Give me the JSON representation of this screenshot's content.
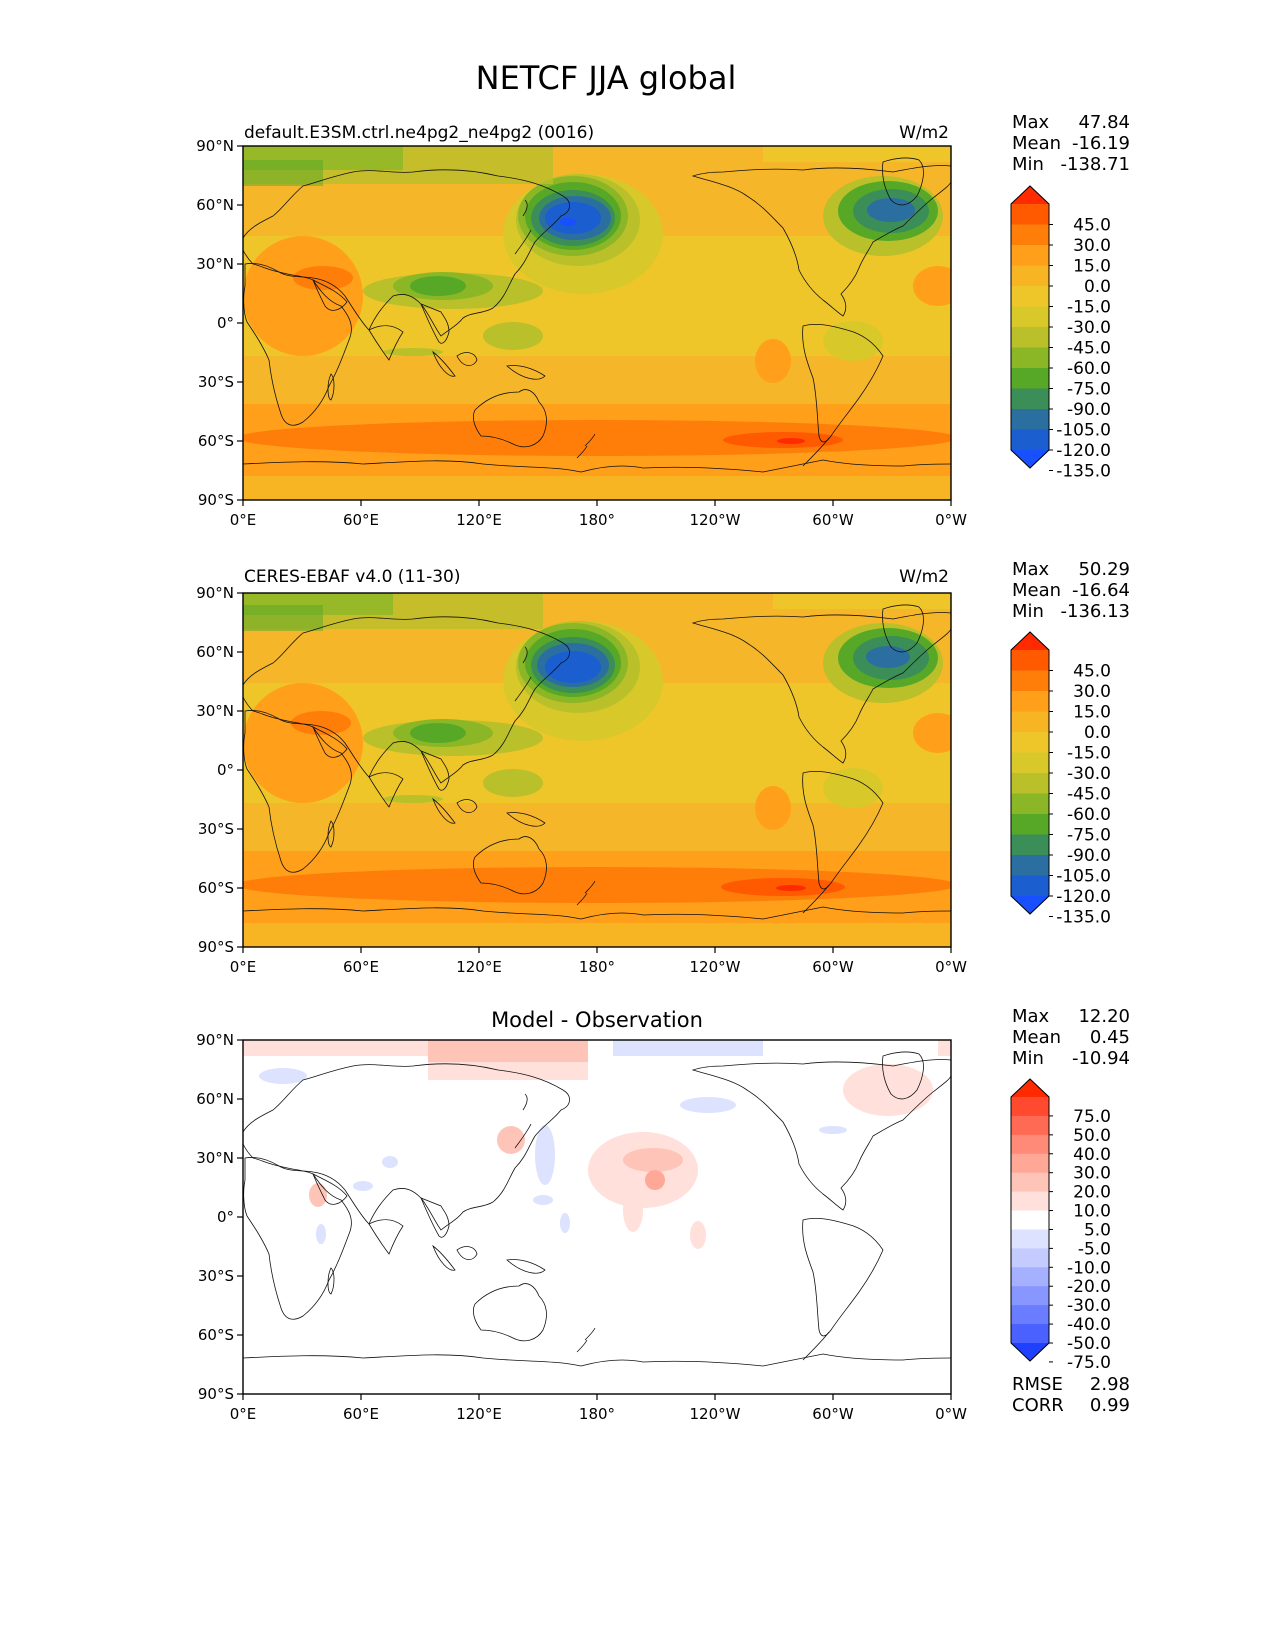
{
  "figure": {
    "title": "NETCF JJA global"
  },
  "panels": [
    {
      "id": "test",
      "left_title": "default.E3SM.ctrl.ne4pg2_ne4pg2 (0016)",
      "center_title": "",
      "units": "W/m2",
      "stats": [
        {
          "label": "Max",
          "value": "47.84"
        },
        {
          "label": "Mean",
          "value": "-16.19"
        },
        {
          "label": "Min",
          "value": "-138.71"
        }
      ],
      "colorbar": {
        "labels": [
          "45.0",
          "30.0",
          "15.0",
          "0.0",
          "-15.0",
          "-30.0",
          "-45.0",
          "-60.0",
          "-75.0",
          "-90.0",
          "-105.0",
          "-120.0",
          "-135.0"
        ],
        "colors": [
          "#ff2a00",
          "#ff5a00",
          "#ff7e0a",
          "#ff9f1a",
          "#f7b524",
          "#efc62a",
          "#d8c82a",
          "#b9c02a",
          "#8bb727",
          "#58a828",
          "#3b8e57",
          "#2a6fa0",
          "#1a5ed0",
          "#1850ff"
        ]
      }
    },
    {
      "id": "reference",
      "left_title": "CERES-EBAF v4.0 (11-30)",
      "center_title": "",
      "units": "W/m2",
      "stats": [
        {
          "label": "Max",
          "value": "50.29"
        },
        {
          "label": "Mean",
          "value": "-16.64"
        },
        {
          "label": "Min",
          "value": "-136.13"
        }
      ],
      "colorbar": {
        "labels": [
          "45.0",
          "30.0",
          "15.0",
          "0.0",
          "-15.0",
          "-30.0",
          "-45.0",
          "-60.0",
          "-75.0",
          "-90.0",
          "-105.0",
          "-120.0",
          "-135.0"
        ],
        "colors": [
          "#ff2a00",
          "#ff5a00",
          "#ff7e0a",
          "#ff9f1a",
          "#f7b524",
          "#efc62a",
          "#d8c82a",
          "#b9c02a",
          "#8bb727",
          "#58a828",
          "#3b8e57",
          "#2a6fa0",
          "#1a5ed0",
          "#1850ff"
        ]
      }
    },
    {
      "id": "difference",
      "left_title": "",
      "center_title": "Model - Observation",
      "units": "",
      "stats": [
        {
          "label": "Max",
          "value": "12.20"
        },
        {
          "label": "Mean",
          "value": "0.45"
        },
        {
          "label": "Min",
          "value": "-10.94"
        }
      ],
      "extra_stats": [
        {
          "label": "RMSE",
          "value": "2.98"
        },
        {
          "label": "CORR",
          "value": "0.99"
        }
      ],
      "colorbar": {
        "labels": [
          "75.0",
          "50.0",
          "40.0",
          "30.0",
          "20.0",
          "10.0",
          "5.0",
          "-5.0",
          "-10.0",
          "-20.0",
          "-30.0",
          "-40.0",
          "-50.0",
          "-75.0"
        ],
        "colors": [
          "#ff2a00",
          "#ff4a30",
          "#ff6a55",
          "#ff8a78",
          "#ffa898",
          "#ffc4b8",
          "#ffe0da",
          "#ffffff",
          "#dde2ff",
          "#c4ccff",
          "#a5b0ff",
          "#8896ff",
          "#6a7cff",
          "#4a60ff",
          "#2040ff"
        ]
      }
    }
  ],
  "chart_data": [
    {
      "type": "heatmap",
      "title": "default.E3SM.ctrl.ne4pg2_ne4pg2 (0016)",
      "units": "W/m2",
      "x_tick_labels": [
        "0°E",
        "60°E",
        "120°E",
        "180°",
        "120°W",
        "60°W",
        "0°W"
      ],
      "y_tick_labels": [
        "90°N",
        "60°N",
        "30°N",
        "0°",
        "30°S",
        "60°S",
        "90°S"
      ],
      "xlim": [
        0,
        360
      ],
      "ylim": [
        -90,
        90
      ],
      "levels": [
        -135,
        -120,
        -105,
        -90,
        -75,
        -60,
        -45,
        -30,
        -15,
        0,
        15,
        30,
        45
      ],
      "stats": {
        "max": 47.84,
        "mean": -16.19,
        "min": -138.71
      },
      "features": [
        {
          "lon": 165,
          "lat": 52,
          "value": -130
        },
        {
          "lon": 320,
          "lat": 57,
          "value": -105
        },
        {
          "lon": 115,
          "lat": 20,
          "value": -75
        },
        {
          "lon": 275,
          "lat": -57,
          "value": 40
        }
      ]
    },
    {
      "type": "heatmap",
      "title": "CERES-EBAF v4.0 (11-30)",
      "units": "W/m2",
      "x_tick_labels": [
        "0°E",
        "60°E",
        "120°E",
        "180°",
        "120°W",
        "60°W",
        "0°W"
      ],
      "y_tick_labels": [
        "90°N",
        "60°N",
        "30°N",
        "0°",
        "30°S",
        "60°S",
        "90°S"
      ],
      "xlim": [
        0,
        360
      ],
      "ylim": [
        -90,
        90
      ],
      "levels": [
        -135,
        -120,
        -105,
        -90,
        -75,
        -60,
        -45,
        -30,
        -15,
        0,
        15,
        30,
        45
      ],
      "stats": {
        "max": 50.29,
        "mean": -16.64,
        "min": -136.13
      },
      "features": [
        {
          "lon": 165,
          "lat": 52,
          "value": -128
        },
        {
          "lon": 322,
          "lat": 57,
          "value": -105
        },
        {
          "lon": 113,
          "lat": 20,
          "value": -75
        },
        {
          "lon": 278,
          "lat": -57,
          "value": 42
        }
      ]
    },
    {
      "type": "heatmap",
      "title": "Model - Observation",
      "x_tick_labels": [
        "0°E",
        "60°E",
        "120°E",
        "180°",
        "120°W",
        "60°W",
        "0°W"
      ],
      "y_tick_labels": [
        "90°N",
        "60°N",
        "30°N",
        "0°",
        "30°S",
        "60°S",
        "90°S"
      ],
      "xlim": [
        0,
        360
      ],
      "ylim": [
        -90,
        90
      ],
      "levels": [
        -75,
        -50,
        -40,
        -30,
        -20,
        -10,
        -5,
        5,
        10,
        20,
        30,
        40,
        50,
        75
      ],
      "stats": {
        "max": 12.2,
        "mean": 0.45,
        "min": -10.94,
        "rmse": 2.98,
        "corr": 0.99
      }
    }
  ]
}
